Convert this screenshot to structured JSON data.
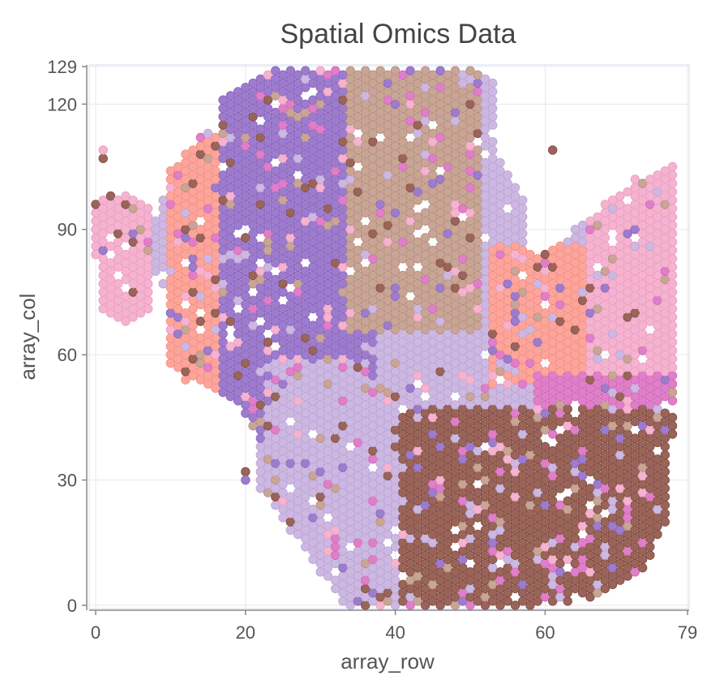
{
  "chart_data": {
    "type": "scatter",
    "title": "Spatial Omics Data",
    "xlabel": "array_row",
    "ylabel": "array_col",
    "xlim": [
      0,
      79
    ],
    "ylim": [
      0,
      129
    ],
    "x_ticks": [
      0,
      20,
      40,
      60,
      79
    ],
    "y_ticks": [
      0,
      30,
      60,
      90,
      120,
      129
    ],
    "grid": true,
    "legend": "none",
    "marker": "hexagonal-spot",
    "cluster_colors": {
      "salmon": "#fea59b",
      "purple": "#9e7ccd",
      "lavender": "#cdb8e2",
      "tan": "#c9a595",
      "brown": "#9a6459",
      "pink": "#f5b3d0",
      "magenta": "#e17ec9"
    },
    "regions": [
      {
        "cluster": "salmon",
        "x": [
          10,
          30
        ],
        "y": [
          48,
          112
        ],
        "note": "left tissue lobe"
      },
      {
        "cluster": "pink",
        "x": [
          0,
          7
        ],
        "y": [
          66,
          98
        ],
        "note": "far left strip"
      },
      {
        "cluster": "purple",
        "x": [
          17,
          37
        ],
        "y": [
          40,
          128
        ],
        "note": "upper-middle band"
      },
      {
        "cluster": "tan",
        "x": [
          34,
          51
        ],
        "y": [
          66,
          128
        ],
        "note": "upper center"
      },
      {
        "cluster": "lavender",
        "x": [
          23,
          52
        ],
        "y": [
          0,
          58
        ],
        "note": "lower middle"
      },
      {
        "cluster": "salmon",
        "x": [
          53,
          74
        ],
        "y": [
          53,
          86
        ],
        "note": "right lobe"
      },
      {
        "cluster": "pink",
        "x": [
          66,
          78
        ],
        "y": [
          50,
          107
        ],
        "note": "right edge"
      },
      {
        "cluster": "magenta",
        "x": [
          59,
          77
        ],
        "y": [
          33,
          55
        ],
        "note": "right lower-middle"
      },
      {
        "cluster": "brown",
        "x": [
          41,
          77
        ],
        "y": [
          0,
          47
        ],
        "note": "bottom right"
      }
    ],
    "isolated_points": [
      {
        "x": 1,
        "y": 107,
        "cluster": "brown"
      },
      {
        "x": 1,
        "y": 109,
        "cluster": "pink"
      },
      {
        "x": 20,
        "y": 32,
        "cluster": "brown"
      },
      {
        "x": 20,
        "y": 30,
        "cluster": "purple"
      },
      {
        "x": 61,
        "y": 109,
        "cluster": "brown"
      }
    ]
  }
}
